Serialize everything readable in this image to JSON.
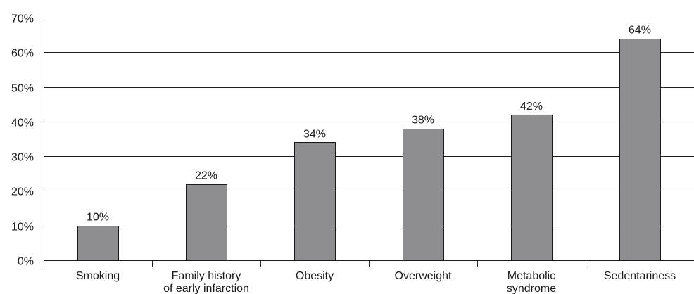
{
  "chart_data": {
    "type": "bar",
    "categories": [
      [
        "Smoking"
      ],
      [
        "Family history",
        "of early infarction"
      ],
      [
        "Obesity"
      ],
      [
        "Overweight"
      ],
      [
        "Metabolic",
        "syndrome"
      ],
      [
        "Sedentariness"
      ]
    ],
    "values": [
      10,
      22,
      34,
      38,
      42,
      64
    ],
    "data_labels": [
      "10%",
      "22%",
      "34%",
      "38%",
      "42%",
      "64%"
    ],
    "y_ticks": [
      0,
      10,
      20,
      30,
      40,
      50,
      60,
      70
    ],
    "y_tick_labels": [
      "0%",
      "10%",
      "20%",
      "30%",
      "40%",
      "50%",
      "60%",
      "70%"
    ],
    "ylim": [
      0,
      70
    ],
    "grid": true,
    "legend": "none",
    "title": "",
    "xlabel": "",
    "ylabel": "",
    "colors": {
      "bar_fill": "#8e8e90",
      "bar_stroke": "#1a1a1a",
      "grid": "#1a1a1a",
      "text": "#1a1a1a"
    }
  }
}
